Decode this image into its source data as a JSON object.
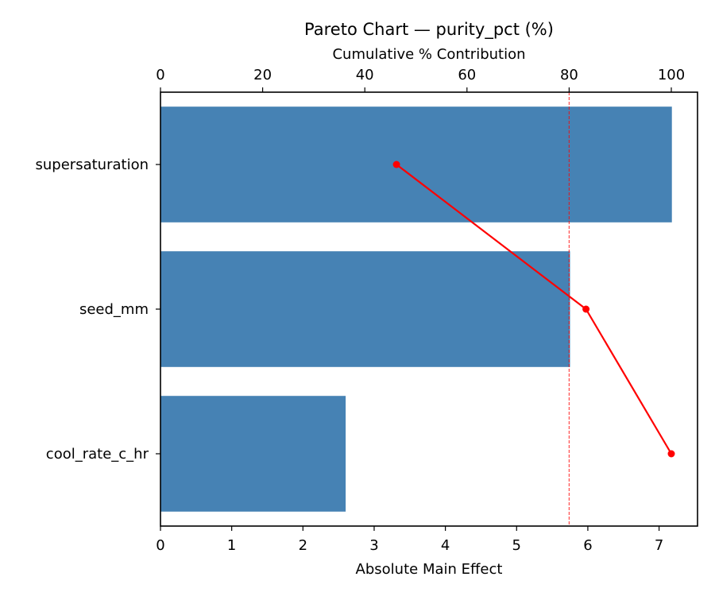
{
  "chart_data": {
    "type": "bar",
    "orientation": "horizontal",
    "title": "Pareto Chart — purity_pct (%)",
    "xlabel": "Absolute Main Effect",
    "ylabel": "",
    "secondary_xlabel": "Cumulative % Contribution",
    "categories": [
      "supersaturation",
      "seed_mm",
      "cool_rate_c_hr"
    ],
    "values": [
      7.18,
      5.75,
      2.6
    ],
    "xlim": [
      0,
      7.54
    ],
    "xticks": [
      0,
      1,
      2,
      3,
      4,
      5,
      6,
      7
    ],
    "secondary_xlim": [
      0,
      105
    ],
    "secondary_xticks": [
      0,
      20,
      40,
      60,
      80,
      100
    ],
    "series": [
      {
        "name": "Absolute Main Effect",
        "type": "bar",
        "color": "#4682b4",
        "values": [
          7.18,
          5.75,
          2.6
        ]
      },
      {
        "name": "Cumulative % Contribution",
        "type": "line",
        "color": "#ff0000",
        "marker": "circle",
        "values": [
          46.2,
          83.3,
          100.0
        ]
      }
    ],
    "reference_line": {
      "axis": "secondary_x",
      "value": 80,
      "style": "dashed",
      "color": "#ff0000"
    },
    "grid": false,
    "legend": null
  },
  "colors": {
    "bar": "#4682b4",
    "cumulative_line": "#ff0000",
    "threshold_line": "#ff0000"
  }
}
